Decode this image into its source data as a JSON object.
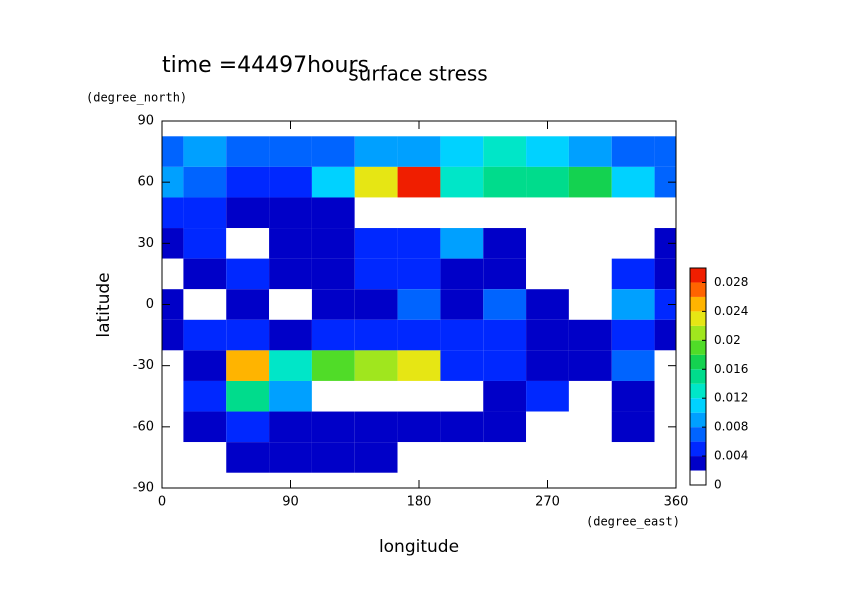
{
  "chart_data": {
    "type": "contour",
    "title": "surface stress",
    "subtitle": "time =44497hours",
    "xlabel": "longitude",
    "ylabel": "latitude",
    "xunit": "(degree_east)",
    "yunit": "(degree_north)",
    "xlim": [
      0,
      360
    ],
    "ylim": [
      -90,
      90
    ],
    "xticks": [
      0,
      90,
      180,
      270,
      360
    ],
    "yticks": [
      -90,
      -60,
      -30,
      0,
      30,
      60,
      90
    ],
    "x": [
      0,
      30,
      60,
      90,
      120,
      150,
      180,
      210,
      240,
      270,
      300,
      330,
      360
    ],
    "y": [
      75,
      60,
      45,
      30,
      15,
      0,
      -15,
      -30,
      -45,
      -60,
      -75
    ],
    "z": [
      [
        0.008,
        0.01,
        0.008,
        0.008,
        0.008,
        0.01,
        0.01,
        0.012,
        0.014,
        0.012,
        0.01,
        0.008,
        0.008
      ],
      [
        0.01,
        0.008,
        0.006,
        0.006,
        0.012,
        0.024,
        0.03,
        0.014,
        0.016,
        0.016,
        0.018,
        0.012,
        0.008
      ],
      [
        0.006,
        0.006,
        0.004,
        0.004,
        0.004,
        0.002,
        0,
        0.002,
        0,
        0,
        0,
        0,
        0
      ],
      [
        0.004,
        0.006,
        0.002,
        0.004,
        0.004,
        0.006,
        0.006,
        0.01,
        0.004,
        0.002,
        0,
        0,
        0.004
      ],
      [
        0,
        0.004,
        0.006,
        0.004,
        0.004,
        0.006,
        0.006,
        0.004,
        0.004,
        0.002,
        0,
        0.006,
        0.004
      ],
      [
        0.004,
        0,
        0.004,
        0.002,
        0.004,
        0.004,
        0.008,
        0.004,
        0.008,
        0.004,
        0.002,
        0.01,
        0.006
      ],
      [
        0.004,
        0.006,
        0.006,
        0.004,
        0.006,
        0.006,
        0.006,
        0.006,
        0.006,
        0.004,
        0.004,
        0.006,
        0.004
      ],
      [
        0,
        0.004,
        0.026,
        0.014,
        0.02,
        0.022,
        0.024,
        0.006,
        0.006,
        0.004,
        0.004,
        0.008,
        0.002
      ],
      [
        0,
        0.006,
        0.016,
        0.01,
        0.002,
        0.002,
        0.002,
        0,
        0.004,
        0.006,
        0,
        0.004,
        0
      ],
      [
        0,
        0.004,
        0.006,
        0.004,
        0.004,
        0.004,
        0.004,
        0.004,
        0.004,
        0.002,
        0,
        0.004,
        0
      ],
      [
        0,
        0,
        0.004,
        0.004,
        0.004,
        0.004,
        0.002,
        0,
        0,
        0,
        0,
        0,
        0
      ]
    ],
    "levels": [
      0,
      0.002,
      0.004,
      0.006,
      0.008,
      0.01,
      0.012,
      0.014,
      0.016,
      0.018,
      0.02,
      0.022,
      0.024,
      0.026,
      0.028,
      0.03
    ],
    "colors": [
      "#ffffff",
      "#0000c8",
      "#0028ff",
      "#0064ff",
      "#00a0ff",
      "#00d2ff",
      "#00e6c8",
      "#00dc8c",
      "#14d250",
      "#50dc28",
      "#a0e61e",
      "#e6e614",
      "#ffb400",
      "#ff6400",
      "#f01e00"
    ],
    "cbar_ticks": [
      0,
      0.004,
      0.008,
      0.012,
      0.016,
      0.02,
      0.024,
      0.028
    ]
  }
}
